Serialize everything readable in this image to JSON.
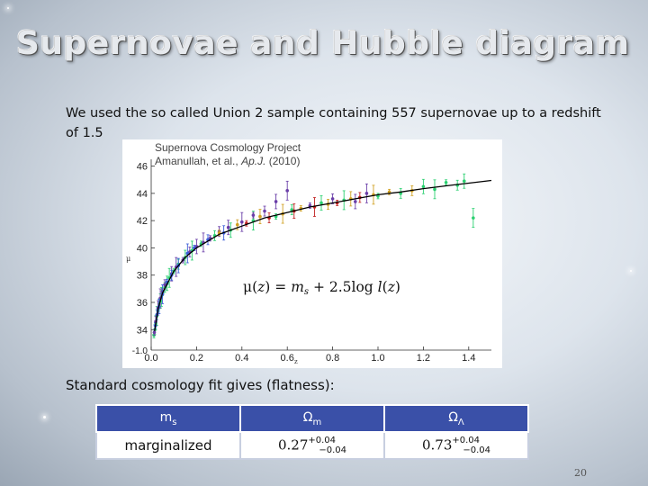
{
  "slide": {
    "title": "Supernovae and Hubble diagram",
    "intro": "We used the so called Union 2 sample containing 557 supernovae up to a redshift of 1.5",
    "fit_text": "Standard cosmology fit gives (flatness):",
    "page_number": "20"
  },
  "figure": {
    "heading_line1": "Supernova Cosmology Project",
    "heading_line2_author": "Amanullah, et al., ",
    "heading_line2_journal": "Ap.J.",
    "heading_line2_year": " (2010)",
    "equation": "μ(z) = m_s + 2.5log l(z)",
    "ylabel": "μ",
    "xlabel": "z",
    "y_offaxis_tick": "-1.0"
  },
  "chart_data": {
    "type": "scatter",
    "title": "Supernova Cosmology Project",
    "xlabel": "z",
    "ylabel": "μ",
    "xlim": [
      0.0,
      1.5
    ],
    "ylim": [
      32.5,
      46.5
    ],
    "x_ticks": [
      0.0,
      0.2,
      0.4,
      0.6,
      0.8,
      1.0,
      1.2,
      1.4
    ],
    "x_tick_labels": [
      "0.0",
      "0.2",
      "0.4",
      "0.6",
      "0.8",
      "1.0",
      "1.2",
      "1.4"
    ],
    "y_ticks": [
      34,
      36,
      38,
      40,
      42,
      44,
      46
    ],
    "y_tick_labels": [
      "34",
      "36",
      "38",
      "40",
      "42",
      "44",
      "46"
    ],
    "fit_curve": {
      "z": [
        0.015,
        0.03,
        0.05,
        0.1,
        0.15,
        0.2,
        0.3,
        0.4,
        0.5,
        0.6,
        0.7,
        0.8,
        0.9,
        1.0,
        1.1,
        1.2,
        1.3,
        1.4,
        1.5
      ],
      "mu": [
        33.9,
        35.5,
        36.7,
        38.3,
        39.3,
        40.0,
        41.0,
        41.6,
        42.2,
        42.6,
        43.0,
        43.3,
        43.6,
        43.9,
        44.1,
        44.35,
        44.55,
        44.75,
        44.95
      ]
    },
    "series": [
      {
        "color": "#2ad070",
        "x": [
          0.012,
          0.016,
          0.02,
          0.025,
          0.03,
          0.035,
          0.04,
          0.045,
          0.05,
          0.06,
          0.07,
          0.08,
          0.1,
          0.12,
          0.15,
          0.18,
          0.22,
          0.28,
          0.35,
          0.45,
          0.55,
          0.62,
          0.75,
          0.85,
          1.0,
          1.1,
          1.2,
          1.25,
          1.3,
          1.35,
          1.38,
          1.42
        ],
        "y": [
          33.6,
          34.0,
          34.5,
          35.0,
          35.4,
          35.9,
          36.1,
          36.4,
          36.7,
          37.1,
          37.4,
          37.8,
          38.3,
          38.8,
          39.3,
          39.8,
          40.3,
          40.9,
          41.3,
          42.0,
          42.3,
          42.8,
          43.3,
          43.5,
          43.8,
          44.0,
          44.5,
          44.3,
          44.8,
          44.6,
          44.9,
          42.2
        ]
      },
      {
        "color": "#6a3ea8",
        "x": [
          0.014,
          0.02,
          0.03,
          0.04,
          0.05,
          0.06,
          0.09,
          0.11,
          0.14,
          0.17,
          0.2,
          0.23,
          0.26,
          0.3,
          0.34,
          0.4,
          0.45,
          0.5,
          0.55,
          0.6,
          0.7,
          0.8,
          0.9,
          0.95
        ],
        "y": [
          33.8,
          34.6,
          35.6,
          36.3,
          36.8,
          37.3,
          38.1,
          38.6,
          39.1,
          39.7,
          40.1,
          40.4,
          40.7,
          41.2,
          41.5,
          41.9,
          42.4,
          42.7,
          43.4,
          44.2,
          43.1,
          43.6,
          43.4,
          44.0
        ]
      },
      {
        "color": "#3a5cd8",
        "x": [
          0.018,
          0.025,
          0.035,
          0.05,
          0.07,
          0.09,
          0.12,
          0.16,
          0.19,
          0.25,
          0.32
        ],
        "y": [
          34.3,
          35.1,
          35.7,
          36.6,
          37.5,
          38.0,
          38.7,
          39.6,
          40.0,
          40.6,
          41.1
        ]
      },
      {
        "color": "#d0a020",
        "x": [
          0.3,
          0.38,
          0.48,
          0.58,
          0.66,
          0.78,
          0.88,
          0.98,
          1.05,
          1.15
        ],
        "y": [
          41.1,
          41.7,
          42.3,
          42.5,
          42.9,
          43.2,
          43.6,
          43.9,
          44.1,
          44.2
        ]
      },
      {
        "color": "#c02020",
        "x": [
          0.42,
          0.52,
          0.63,
          0.72,
          0.82,
          0.92
        ],
        "y": [
          41.8,
          42.2,
          42.7,
          43.0,
          43.3,
          43.7
        ]
      }
    ]
  },
  "table": {
    "headers": [
      "m",
      "Ω",
      "Ω"
    ],
    "header_subs": [
      "s",
      "m",
      "Λ"
    ],
    "row_label": "marginalized",
    "values": [
      {
        "central": "0.27",
        "upper": "+0.04",
        "lower": "−0.04"
      },
      {
        "central": "0.73",
        "upper": "+0.04",
        "lower": "−0.04"
      }
    ]
  },
  "colors": {
    "table_header_bg": "#3a50a8",
    "fit_curve": "#000000"
  }
}
